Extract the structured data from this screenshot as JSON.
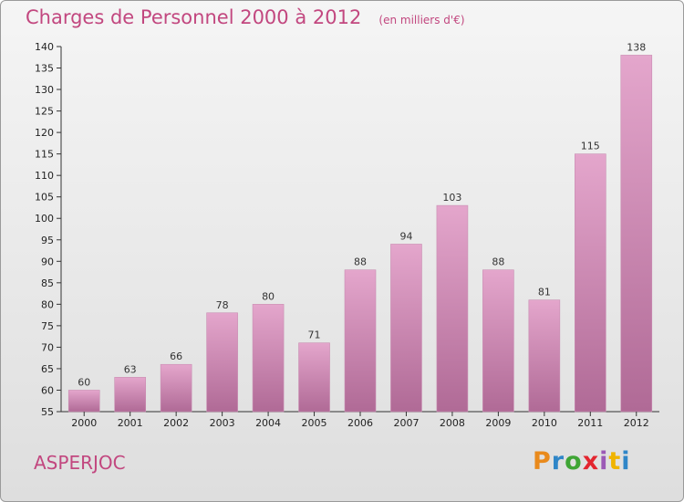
{
  "header": {
    "title": "Charges de Personnel 2000 à 2012",
    "subtitle": "(en milliers d'€)"
  },
  "footer": {
    "commune": "ASPERJOC",
    "brand": "Proxiti"
  },
  "colors": {
    "bar_top": "#e4a6cc",
    "bar_bottom": "#b06a96",
    "title": "#c2477f",
    "brand_letters": [
      "#e98a1c",
      "#2f86c8",
      "#3fa535",
      "#e3262f",
      "#9b59b6",
      "#f0b400",
      "#2f86c8"
    ]
  },
  "chart_data": {
    "type": "bar",
    "title": "Charges de Personnel 2000 à 2012",
    "subtitle": "(en milliers d'€)",
    "categories": [
      "2000",
      "2001",
      "2002",
      "2003",
      "2004",
      "2005",
      "2006",
      "2007",
      "2008",
      "2009",
      "2010",
      "2011",
      "2012"
    ],
    "values": [
      60,
      63,
      66,
      78,
      80,
      71,
      88,
      94,
      103,
      88,
      81,
      115,
      138
    ],
    "ylim": [
      55,
      140
    ],
    "yticks": [
      55,
      60,
      65,
      70,
      75,
      80,
      85,
      90,
      95,
      100,
      105,
      110,
      115,
      120,
      125,
      130,
      135,
      140
    ],
    "grid": false,
    "data_labels": true
  }
}
